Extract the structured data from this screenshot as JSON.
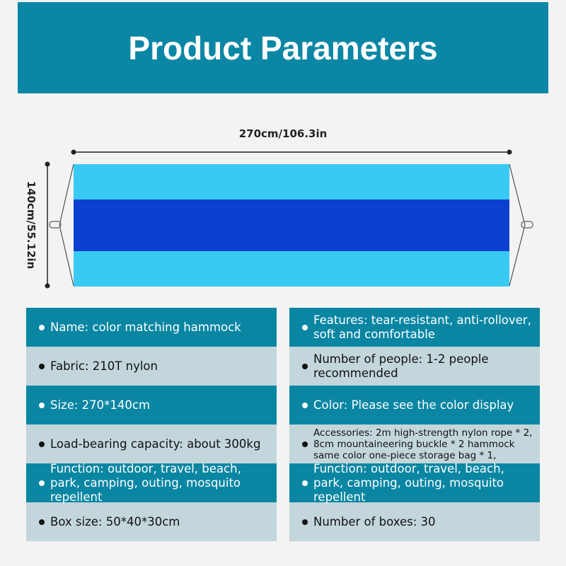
{
  "title": "Product Parameters",
  "dimensions": {
    "width": "270cm/106.3in",
    "height": "140cm/55.12in"
  },
  "hammock_colors": [
    "#38caf2",
    "#0b40d0",
    "#38caf2"
  ],
  "colors": {
    "header": "#0b87a5",
    "row_dark": "#0a86a3",
    "row_light": "#c3d6dc",
    "background": "#f3f3f3"
  },
  "left": [
    "Name: color matching hammock",
    "Fabric: 210T nylon",
    "Size: 270*140cm",
    "Load-bearing capacity: about 300kg",
    "Function: outdoor, travel, beach,\npark, camping, outing, mosquito repellent",
    "Box size: 50*40*30cm"
  ],
  "right": [
    "Features: tear-resistant, anti-rollover,\nsoft and comfortable",
    "Number of people: 1-2 people\nrecommended",
    "Color: Please see the color display",
    "Accessories: 2m high-strength nylon rope * 2,\n8cm mountaineering buckle * 2 hammock\nsame color one-piece storage bag * 1,",
    "Function: outdoor, travel, beach,\npark, camping, outing, mosquito repellent",
    "Number of boxes: 30"
  ]
}
